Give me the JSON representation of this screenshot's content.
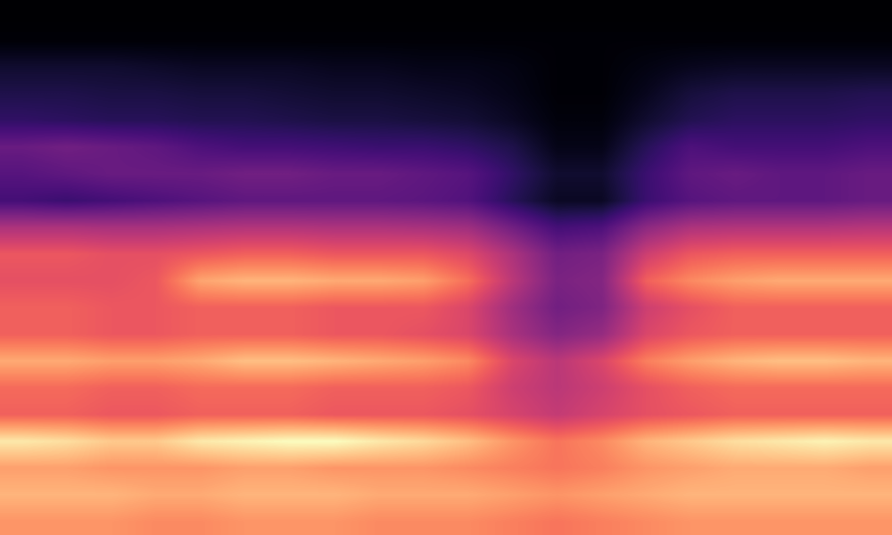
{
  "chart_data": {
    "type": "heatmap",
    "color": "magma",
    "tick_labels": false,
    "cells": [
      [
        0.02,
        0.02,
        0.02,
        0.02,
        0.02,
        0.02,
        0.02,
        0.02,
        0.02,
        0.02,
        0.02,
        0.02,
        0.02,
        0.02,
        0.02,
        0.02,
        0.02,
        0.02,
        0.02,
        0.02
      ],
      [
        0.03,
        0.03,
        0.03,
        0.03,
        0.03,
        0.03,
        0.03,
        0.03,
        0.03,
        0.03,
        0.03,
        0.03,
        0.03,
        0.03,
        0.03,
        0.03,
        0.03,
        0.03,
        0.03,
        0.03
      ],
      [
        0.1,
        0.1,
        0.1,
        0.09,
        0.08,
        0.08,
        0.08,
        0.07,
        0.07,
        0.06,
        0.06,
        0.05,
        0.03,
        0.03,
        0.05,
        0.07,
        0.08,
        0.08,
        0.08,
        0.08
      ],
      [
        0.14,
        0.14,
        0.13,
        0.13,
        0.12,
        0.12,
        0.11,
        0.1,
        0.1,
        0.09,
        0.08,
        0.06,
        0.03,
        0.03,
        0.07,
        0.12,
        0.14,
        0.14,
        0.14,
        0.15
      ],
      [
        0.18,
        0.17,
        0.16,
        0.16,
        0.15,
        0.15,
        0.14,
        0.13,
        0.13,
        0.12,
        0.11,
        0.08,
        0.04,
        0.04,
        0.1,
        0.15,
        0.17,
        0.17,
        0.17,
        0.18
      ],
      [
        0.3,
        0.32,
        0.3,
        0.28,
        0.24,
        0.22,
        0.22,
        0.21,
        0.2,
        0.2,
        0.18,
        0.14,
        0.06,
        0.06,
        0.16,
        0.24,
        0.22,
        0.22,
        0.22,
        0.24
      ],
      [
        0.26,
        0.28,
        0.3,
        0.3,
        0.3,
        0.32,
        0.32,
        0.3,
        0.3,
        0.28,
        0.26,
        0.18,
        0.1,
        0.1,
        0.2,
        0.28,
        0.3,
        0.28,
        0.28,
        0.3
      ],
      [
        0.22,
        0.2,
        0.22,
        0.24,
        0.26,
        0.28,
        0.28,
        0.28,
        0.28,
        0.27,
        0.25,
        0.16,
        0.08,
        0.08,
        0.2,
        0.26,
        0.28,
        0.28,
        0.28,
        0.3
      ],
      [
        0.45,
        0.45,
        0.44,
        0.44,
        0.45,
        0.46,
        0.46,
        0.45,
        0.45,
        0.44,
        0.42,
        0.32,
        0.22,
        0.24,
        0.38,
        0.45,
        0.46,
        0.46,
        0.46,
        0.47
      ],
      [
        0.6,
        0.6,
        0.58,
        0.58,
        0.6,
        0.62,
        0.62,
        0.6,
        0.6,
        0.6,
        0.56,
        0.45,
        0.32,
        0.34,
        0.52,
        0.6,
        0.62,
        0.62,
        0.62,
        0.62
      ],
      [
        0.58,
        0.58,
        0.58,
        0.6,
        0.75,
        0.78,
        0.78,
        0.76,
        0.76,
        0.74,
        0.65,
        0.48,
        0.34,
        0.36,
        0.62,
        0.7,
        0.74,
        0.76,
        0.76,
        0.76
      ],
      [
        0.62,
        0.62,
        0.6,
        0.6,
        0.62,
        0.62,
        0.62,
        0.6,
        0.6,
        0.6,
        0.55,
        0.42,
        0.32,
        0.35,
        0.52,
        0.58,
        0.62,
        0.62,
        0.62,
        0.62
      ],
      [
        0.62,
        0.62,
        0.6,
        0.6,
        0.62,
        0.62,
        0.62,
        0.6,
        0.6,
        0.58,
        0.55,
        0.44,
        0.36,
        0.4,
        0.55,
        0.6,
        0.62,
        0.62,
        0.62,
        0.62
      ],
      [
        0.76,
        0.76,
        0.74,
        0.74,
        0.76,
        0.8,
        0.8,
        0.78,
        0.76,
        0.74,
        0.7,
        0.55,
        0.48,
        0.55,
        0.68,
        0.74,
        0.78,
        0.8,
        0.8,
        0.78
      ],
      [
        0.64,
        0.64,
        0.62,
        0.62,
        0.64,
        0.64,
        0.64,
        0.62,
        0.62,
        0.62,
        0.6,
        0.52,
        0.48,
        0.52,
        0.58,
        0.62,
        0.64,
        0.64,
        0.64,
        0.64
      ],
      [
        0.62,
        0.62,
        0.6,
        0.6,
        0.62,
        0.62,
        0.62,
        0.6,
        0.6,
        0.6,
        0.58,
        0.54,
        0.5,
        0.54,
        0.58,
        0.6,
        0.62,
        0.62,
        0.62,
        0.62
      ],
      [
        0.88,
        0.86,
        0.82,
        0.82,
        0.88,
        0.9,
        0.92,
        0.92,
        0.88,
        0.85,
        0.8,
        0.72,
        0.66,
        0.7,
        0.78,
        0.82,
        0.86,
        0.88,
        0.9,
        0.88
      ],
      [
        0.74,
        0.74,
        0.72,
        0.72,
        0.72,
        0.74,
        0.74,
        0.72,
        0.72,
        0.72,
        0.7,
        0.68,
        0.66,
        0.68,
        0.72,
        0.74,
        0.76,
        0.76,
        0.76,
        0.74
      ],
      [
        0.78,
        0.78,
        0.78,
        0.76,
        0.76,
        0.78,
        0.78,
        0.78,
        0.76,
        0.76,
        0.76,
        0.74,
        0.72,
        0.74,
        0.76,
        0.78,
        0.78,
        0.78,
        0.78,
        0.78
      ],
      [
        0.72,
        0.72,
        0.72,
        0.7,
        0.7,
        0.72,
        0.72,
        0.72,
        0.7,
        0.7,
        0.7,
        0.68,
        0.66,
        0.68,
        0.7,
        0.72,
        0.72,
        0.72,
        0.72,
        0.72
      ]
    ]
  }
}
